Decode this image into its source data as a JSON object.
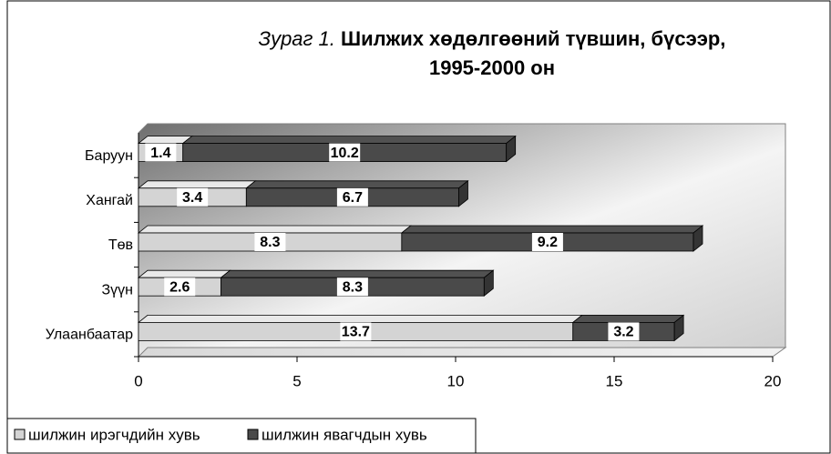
{
  "chart_data": {
    "type": "stacked-bar-horizontal-3d",
    "figure_label": "Зураг 1.",
    "title": "Шилжих хөдөлгөөний түвшин, бүсээр,",
    "subtitle": "1995-2000 он",
    "categories": [
      "Улаанбаатар",
      "Зүүн",
      "Төв",
      "Хангай",
      "Баруун"
    ],
    "series": [
      {
        "name": "шилжин ирэгчдийн хувь",
        "color": "#d4d4d4",
        "values": [
          13.7,
          2.6,
          8.3,
          3.4,
          1.4
        ]
      },
      {
        "name": "шилжин явагчдын хувь",
        "color": "#4a4a4a",
        "values": [
          3.2,
          8.3,
          9.2,
          6.7,
          10.2
        ]
      }
    ],
    "xlim": [
      0,
      20
    ],
    "xticks": [
      0,
      5,
      10,
      15,
      20
    ],
    "legend": "bottom"
  }
}
